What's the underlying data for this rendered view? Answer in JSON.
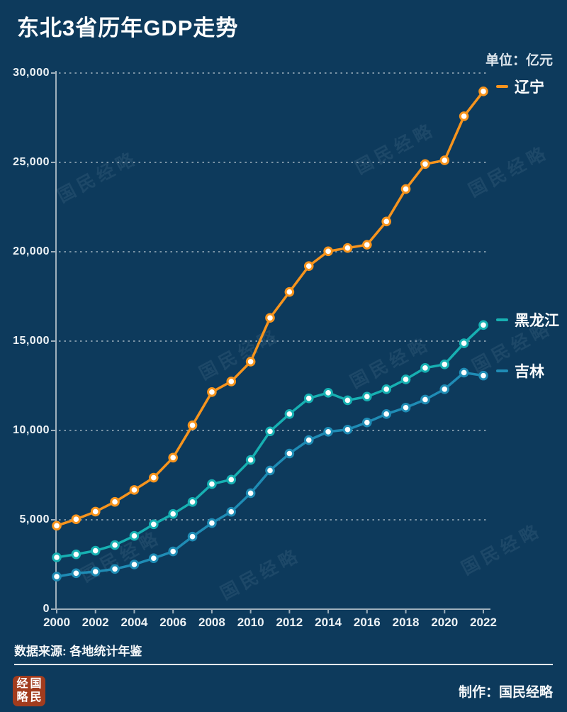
{
  "title": "东北3省历年GDP走势",
  "unit_label": "单位：亿元",
  "watermark_text": "国民经略",
  "legend": [
    {
      "label": "辽宁"
    },
    {
      "label": "黑龙江"
    },
    {
      "label": "吉林"
    }
  ],
  "footer": {
    "source": "数据来源: 各地统计年鉴",
    "credit": "制作：国民经略",
    "logo_chars": [
      "经",
      "国",
      "略",
      "民"
    ]
  },
  "colors": {
    "background": "#0d3a5c",
    "title": "#ffffff",
    "unit_label": "#dde5ec",
    "axis": "#9fb0bc",
    "grid": "#d6dee4",
    "marker_fill": "#ffffff",
    "liaoning": "#f7941d",
    "heilongjiang": "#17b0b2",
    "jilin": "#1f8cb5",
    "logo_seal": "#a23c1e"
  },
  "chart_data": {
    "type": "line",
    "title": "东北3省历年GDP走势",
    "unit": "亿元",
    "x": [
      2000,
      2001,
      2002,
      2003,
      2004,
      2005,
      2006,
      2007,
      2008,
      2009,
      2010,
      2011,
      2012,
      2013,
      2014,
      2015,
      2016,
      2017,
      2018,
      2019,
      2020,
      2021,
      2022
    ],
    "x_tick_labels": [
      "2000",
      "2002",
      "2004",
      "2006",
      "2008",
      "2010",
      "2012",
      "2014",
      "2016",
      "2018",
      "2020",
      "2022"
    ],
    "y_tick_values": [
      0,
      5000,
      10000,
      15000,
      20000,
      25000,
      30000
    ],
    "y_tick_labels": [
      "0",
      "5,000",
      "10,000",
      "15,000",
      "20,000",
      "25,000",
      "30,000"
    ],
    "xlim": [
      2000,
      2022
    ],
    "ylim": [
      0,
      30000
    ],
    "grid": "horizontal-dashed",
    "legend_position": "right-of-line-end",
    "series": [
      {
        "name": "辽宁",
        "color": "#f7941d",
        "values": [
          4669,
          5033,
          5458,
          6003,
          6672,
          7360,
          8480,
          10290,
          12150,
          12740,
          13850,
          16300,
          17750,
          19200,
          20026,
          20210,
          20392,
          21693,
          23510,
          24909,
          25115,
          27584,
          28975
        ]
      },
      {
        "name": "黑龙江",
        "color": "#17b0b2",
        "values": [
          2900,
          3070,
          3270,
          3590,
          4100,
          4750,
          5330,
          6000,
          7000,
          7250,
          8350,
          9950,
          10920,
          11800,
          12110,
          11690,
          11895,
          12310,
          12860,
          13500,
          13699,
          14879,
          15901
        ]
      },
      {
        "name": "吉林",
        "color": "#1f8cb5",
        "values": [
          1821,
          2010,
          2100,
          2250,
          2500,
          2850,
          3230,
          4060,
          4820,
          5450,
          6490,
          7760,
          8710,
          9460,
          9930,
          10050,
          10450,
          10920,
          11280,
          11727,
          12311,
          13236,
          13070
        ]
      }
    ]
  }
}
